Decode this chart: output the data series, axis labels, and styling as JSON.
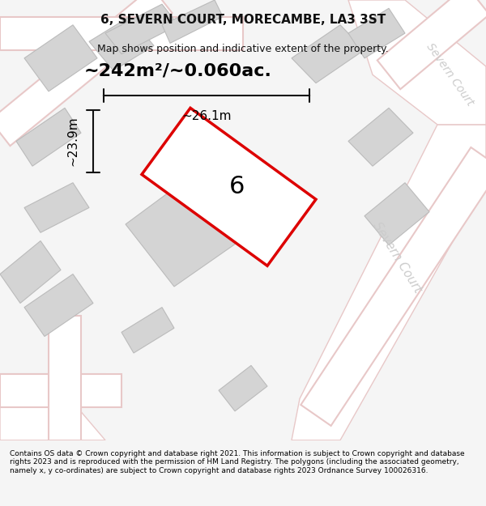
{
  "title": "6, SEVERN COURT, MORECAMBE, LA3 3ST",
  "subtitle": "Map shows position and indicative extent of the property.",
  "area_label": "~242m²/~0.060ac.",
  "plot_number": "6",
  "dim_width": "~26.1m",
  "dim_height": "~23.9m",
  "street_label_diag": "Severn Court",
  "street_label_top": "Severn Court",
  "footer": "Contains OS data © Crown copyright and database right 2021. This information is subject to Crown copyright and database rights 2023 and is reproduced with the permission of HM Land Registry. The polygons (including the associated geometry, namely x, y co-ordinates) are subject to Crown copyright and database rights 2023 Ordnance Survey 100026316.",
  "bg_color": "#f5f5f5",
  "map_bg": "#f0efee",
  "road_color": "#ffffff",
  "road_outline": "#e8c8c8",
  "building_color": "#d8d8d8",
  "building_outline": "#bbbbbb",
  "plot_outline_color": "#dd0000",
  "plot_fill_color": "#ffffff",
  "dim_line_color": "#111111",
  "footer_bg": "#ffffff",
  "title_color": "#111111",
  "street_text_color": "#bbbbbb"
}
